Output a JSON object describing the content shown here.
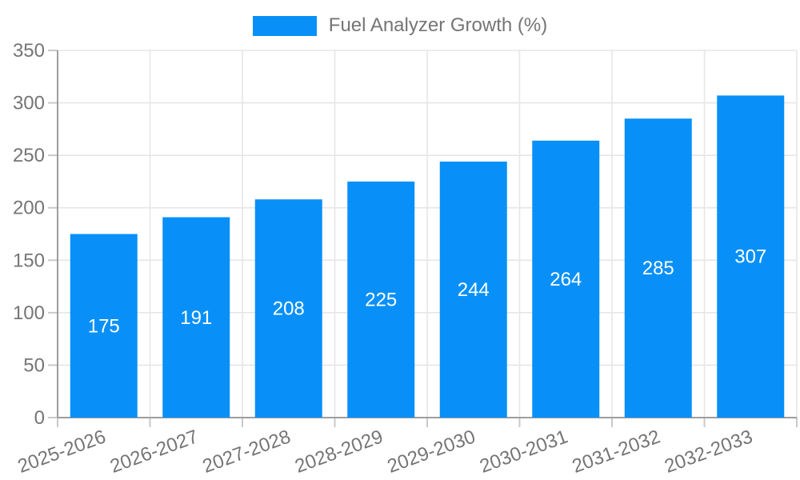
{
  "chart_data": {
    "type": "bar",
    "title": "",
    "xlabel": "",
    "ylabel": "",
    "categories": [
      "2025-2026",
      "2026-2027",
      "2027-2028",
      "2028-2029",
      "2029-2030",
      "2030-2031",
      "2031-2032",
      "2032-2033"
    ],
    "series": [
      {
        "name": "Fuel Analyzer Growth (%)",
        "values": [
          175,
          191,
          208,
          225,
          244,
          264,
          285,
          307
        ]
      }
    ],
    "value_labels": [
      "175",
      "191",
      "208",
      "225",
      "244",
      "264",
      "285",
      "307"
    ],
    "ylim": [
      0,
      350
    ],
    "ytick_step": 50,
    "yticks": [
      0,
      50,
      100,
      150,
      200,
      250,
      300,
      350
    ],
    "grid": true,
    "legend_position": "top",
    "x_label_rotation_deg": -20,
    "colors": {
      "bar": "#0890f8",
      "value_label": "#ffffff",
      "axis_line": "#9e9e9e",
      "gridline": "#e6e6e6",
      "tick": "#c9c9c9",
      "text": "#757575",
      "background": "#ffffff"
    }
  }
}
